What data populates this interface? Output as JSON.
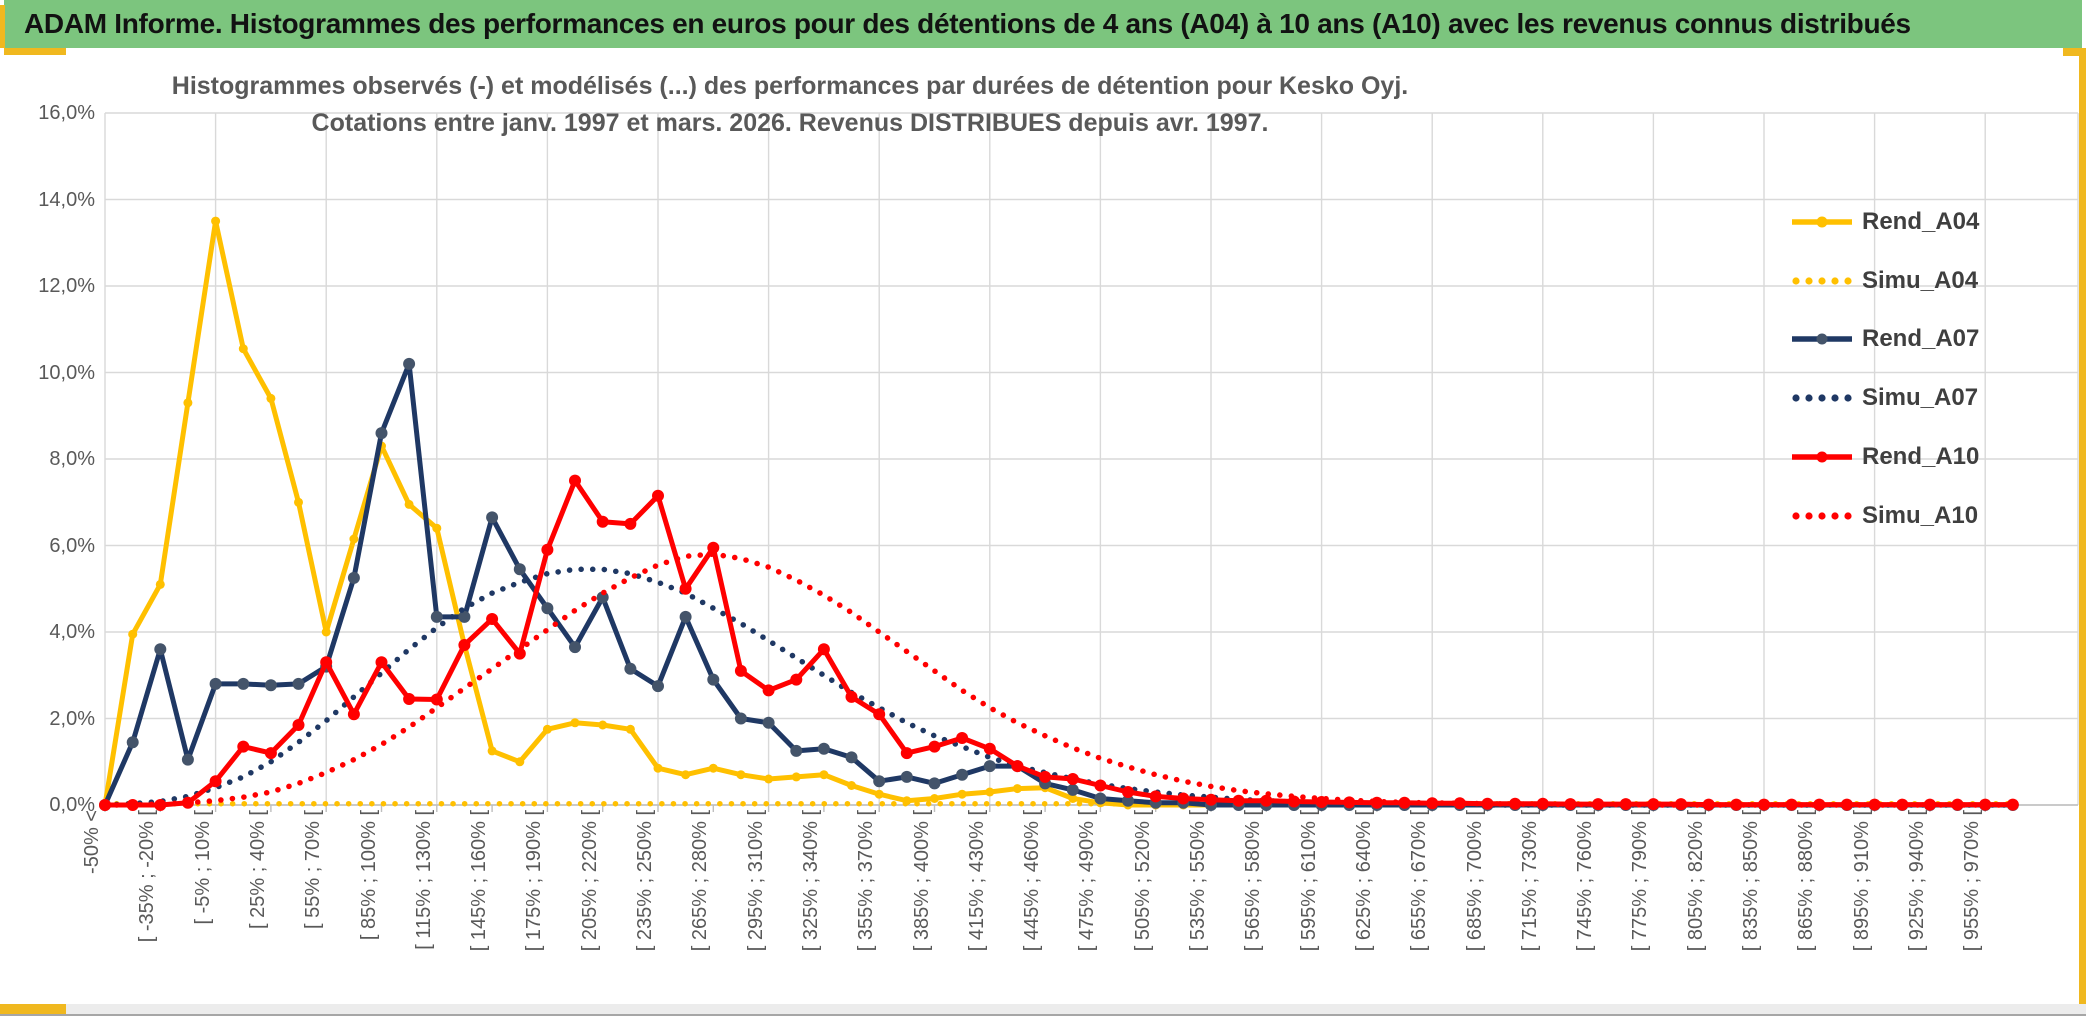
{
  "window": {
    "title": "ADAM Informe. Histogrammes des performances en euros pour des détentions de 4 ans (A04) à 10 ans (A10) avec les revenus connus distribués",
    "colors": {
      "header_green": "#7CC57E",
      "accent_gold": "#F0B81F",
      "gridline": "#D9D9D9",
      "axis": "#BFBFBF",
      "text_gray": "#595959",
      "legend_text": "#3F3F3F"
    }
  },
  "chart_data": {
    "type": "line",
    "title_line1": "Histogrammes observés (-) et modélisés (...) des performances par durées de détention pour Kesko Oyj.",
    "title_line2": "Cotations entre janv. 1997 et mars. 2026.  Revenus DISTRIBUES depuis avr. 1997.",
    "ylabel": "",
    "xlabel": "",
    "ylim": [
      0,
      16
    ],
    "grid": true,
    "legend_position": "right",
    "y_ticks": [
      "0,0%",
      "2,0%",
      "4,0%",
      "6,0%",
      "8,0%",
      "10,0%",
      "12,0%",
      "14,0%",
      "16,0%"
    ],
    "categories": [
      "-50% <",
      "[ -35% ; -20% [",
      "[ -5% ; 10% [",
      "[ 25% ; 40% [",
      "[ 55% ; 70% [",
      "[ 85% ; 100% [",
      "[ 115% ; 130% [",
      "[ 145% ; 160% [",
      "[ 175% ; 190% [",
      "[ 205% ; 220% [",
      "[ 235% ; 250% [",
      "[ 265% ; 280% [",
      "[ 295% ; 310% [",
      "[ 325% ; 340% [",
      "[ 355% ; 370% [",
      "[ 385% ; 400% [",
      "[ 415% ; 430% [",
      "[ 445% ; 460% [",
      "[ 475% ; 490% [",
      "[ 505% ; 520% [",
      "[ 535% ; 550% [",
      "[ 565% ; 580% [",
      "[ 595% ; 610% [",
      "[ 625% ; 640% [",
      "[ 655% ; 670% [",
      "[ 685% ; 700% [",
      "[ 715% ; 730% [",
      "[ 745% ; 760% [",
      "[ 775% ; 790% [",
      "[ 805% ; 820% [",
      "[ 835% ; 850% [",
      "[ 865% ; 880% [",
      "[ 895% ; 910% [",
      "[ 925% ; 940% [",
      "[ 955% ; 970% ["
    ],
    "bins_per_category": 2,
    "series": [
      {
        "name": "Rend_A04",
        "style": "solid",
        "color": "#FFC000",
        "marker_color": "#FFC000",
        "marker_r": 4.5,
        "values": [
          0,
          3.95,
          5.1,
          9.3,
          13.5,
          10.55,
          9.4,
          7.0,
          4.0,
          6.15,
          8.3,
          6.95,
          6.4,
          3.7,
          1.25,
          1.0,
          1.75,
          1.9,
          1.85,
          1.75,
          0.85,
          0.7,
          0.85,
          0.7,
          0.6,
          0.65,
          0.7,
          0.45,
          0.25,
          0.1,
          0.15,
          0.25,
          0.3,
          0.38,
          0.4,
          0.15,
          0.05,
          0,
          0,
          0,
          0,
          0,
          0,
          0,
          0,
          0,
          0,
          0,
          0,
          0,
          0,
          0,
          0,
          0,
          0,
          0,
          0,
          0,
          0,
          0,
          0,
          0,
          0,
          0,
          0,
          0,
          0,
          0,
          0,
          0
        ]
      },
      {
        "name": "Simu_A04",
        "style": "dotted",
        "color": "#FFC000",
        "marker_color": "#FFC000",
        "marker_r": 0,
        "values": [
          0.03,
          0.03,
          0.03,
          0.03,
          0.03,
          0.03,
          0.03,
          0.03,
          0.03,
          0.03,
          0.03,
          0.03,
          0.03,
          0.03,
          0.03,
          0.03,
          0.03,
          0.03,
          0.03,
          0.03,
          0.03,
          0.03,
          0.03,
          0.03,
          0.03,
          0.03,
          0.03,
          0.03,
          0.03,
          0.03,
          0.03,
          0.03,
          0.03,
          0.03,
          0.03,
          0.03,
          0.03,
          0.03,
          0.03,
          0.03,
          0.03,
          0.03,
          0.03,
          0.03,
          0.03,
          0.03,
          0.03,
          0.03,
          0.03,
          0.03,
          0.03,
          0.03,
          0.03,
          0.03,
          0.03,
          0.03,
          0.03,
          0.03,
          0.03,
          0.03,
          0.03,
          0.03,
          0.03,
          0.03,
          0.03,
          0.03,
          0.03,
          0.03,
          0.03,
          0.03
        ]
      },
      {
        "name": "Rend_A07",
        "style": "solid",
        "color": "#1F3864",
        "marker_color": "#44546A",
        "marker_r": 6,
        "values": [
          0,
          1.45,
          3.6,
          1.05,
          2.8,
          2.8,
          2.77,
          2.8,
          3.2,
          5.25,
          8.6,
          10.2,
          4.35,
          4.35,
          6.65,
          5.45,
          4.55,
          3.65,
          4.8,
          3.15,
          2.75,
          4.35,
          2.9,
          2.0,
          1.9,
          1.25,
          1.3,
          1.1,
          0.55,
          0.65,
          0.5,
          0.7,
          0.9,
          0.9,
          0.5,
          0.35,
          0.15,
          0.1,
          0.05,
          0.05,
          0,
          0,
          0,
          0,
          0,
          0,
          0,
          0,
          0,
          0,
          0,
          0,
          0,
          0,
          0,
          0,
          0,
          0,
          0,
          0,
          0,
          0,
          0,
          0,
          0,
          0,
          0,
          0,
          0,
          0
        ]
      },
      {
        "name": "Simu_A07",
        "style": "dotted",
        "color": "#1F3864",
        "marker_color": "#1F3864",
        "marker_r": 0,
        "values": [
          0,
          0.03,
          0.08,
          0.2,
          0.4,
          0.65,
          1.0,
          1.45,
          1.95,
          2.5,
          3.05,
          3.6,
          4.1,
          4.55,
          4.9,
          5.15,
          5.35,
          5.45,
          5.45,
          5.35,
          5.15,
          4.9,
          4.55,
          4.2,
          3.8,
          3.4,
          3.0,
          2.6,
          2.25,
          1.9,
          1.6,
          1.35,
          1.1,
          0.9,
          0.75,
          0.6,
          0.48,
          0.38,
          0.3,
          0.23,
          0.18,
          0.13,
          0.1,
          0.07,
          0.05,
          0.04,
          0.03,
          0.02,
          0.01,
          0.01,
          0,
          0,
          0,
          0,
          0,
          0,
          0,
          0,
          0,
          0,
          0,
          0,
          0,
          0,
          0,
          0,
          0,
          0,
          0,
          0
        ]
      },
      {
        "name": "Rend_A10",
        "style": "solid",
        "color": "#FF0000",
        "marker_color": "#FF0000",
        "marker_r": 6,
        "values": [
          0,
          0,
          0,
          0.05,
          0.55,
          1.35,
          1.2,
          1.85,
          3.3,
          2.1,
          3.3,
          2.45,
          2.44,
          3.7,
          4.3,
          3.5,
          5.9,
          7.5,
          6.55,
          6.5,
          7.15,
          5.0,
          5.95,
          3.1,
          2.65,
          2.9,
          3.6,
          2.5,
          2.1,
          1.2,
          1.35,
          1.55,
          1.3,
          0.9,
          0.65,
          0.6,
          0.45,
          0.3,
          0.2,
          0.15,
          0.12,
          0.1,
          0.1,
          0.08,
          0.07,
          0.06,
          0.05,
          0.05,
          0.04,
          0.04,
          0.03,
          0.03,
          0.03,
          0.02,
          0.02,
          0.02,
          0.02,
          0.02,
          0.01,
          0.01,
          0.01,
          0.01,
          0.01,
          0.01,
          0.01,
          0.01,
          0.01,
          0.01,
          0.01,
          0.01
        ]
      },
      {
        "name": "Simu_A10",
        "style": "dotted",
        "color": "#FF0000",
        "marker_color": "#FF0000",
        "marker_r": 0,
        "values": [
          0,
          0,
          0.02,
          0.05,
          0.1,
          0.18,
          0.3,
          0.5,
          0.75,
          1.05,
          1.4,
          1.8,
          2.25,
          2.7,
          3.15,
          3.6,
          4.05,
          4.5,
          4.9,
          5.25,
          5.55,
          5.75,
          5.8,
          5.7,
          5.5,
          5.2,
          4.85,
          4.45,
          4.0,
          3.55,
          3.1,
          2.65,
          2.25,
          1.9,
          1.6,
          1.32,
          1.08,
          0.88,
          0.7,
          0.55,
          0.43,
          0.33,
          0.26,
          0.2,
          0.15,
          0.11,
          0.08,
          0.06,
          0.05,
          0.04,
          0.03,
          0.02,
          0.02,
          0.01,
          0.01,
          0.01,
          0,
          0,
          0,
          0,
          0,
          0,
          0,
          0,
          0,
          0,
          0,
          0,
          0,
          0
        ]
      }
    ]
  }
}
